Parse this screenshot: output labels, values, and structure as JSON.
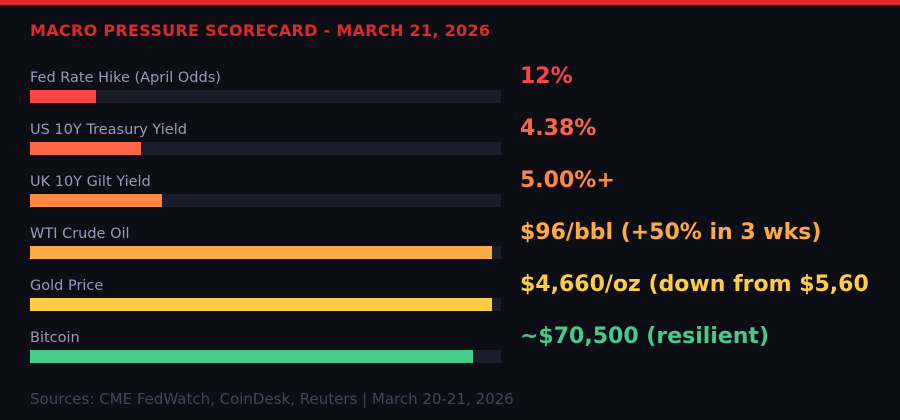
{
  "colors": {
    "accent": "#dd2a2a",
    "background": "#0d0d15",
    "track": "#1c1c2a"
  },
  "title": "MACRO PRESSURE SCORECARD - MARCH 21, 2026",
  "rows": [
    {
      "label": "Fed Rate Hike (April Odds)",
      "value": "12%",
      "fill": 0.14,
      "color": "#ff4444"
    },
    {
      "label": "US 10Y Treasury Yield",
      "value": "4.38%",
      "fill": 0.235,
      "color": "#ff6644"
    },
    {
      "label": "UK 10Y Gilt Yield",
      "value": "5.00%+",
      "fill": 0.28,
      "color": "#ff8844"
    },
    {
      "label": "WTI Crude Oil",
      "value": "$96/bbl (+50% in 3 wks)",
      "fill": 0.98,
      "color": "#ffaa44"
    },
    {
      "label": "Gold Price",
      "value": "$4,660/oz (down from $5,60",
      "fill": 0.98,
      "color": "#ffcc44"
    },
    {
      "label": "Bitcoin",
      "value": "~$70,500 (resilient)",
      "fill": 0.94,
      "color": "#44cc88"
    }
  ],
  "footer": "Sources: CME FedWatch, CoinDesk, Reuters | March 20-21, 2026"
}
